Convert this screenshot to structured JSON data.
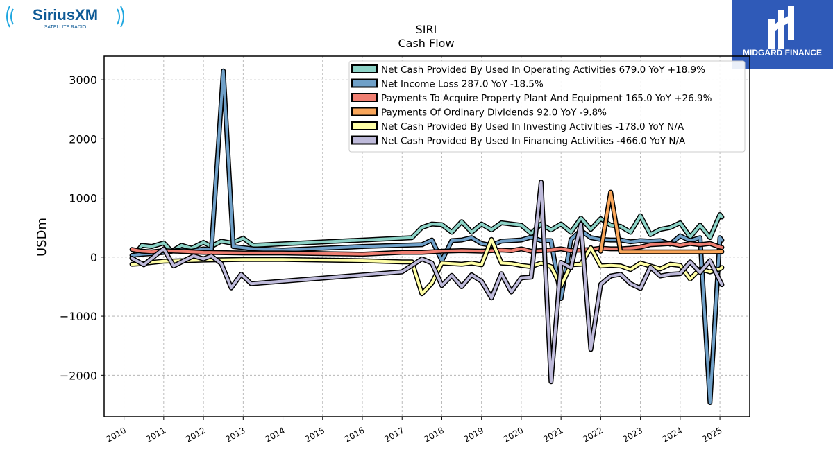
{
  "logos": {
    "left": {
      "name": "SiriusXM",
      "tagline": "SATELLITE RADIO",
      "color": "#0e5a96"
    },
    "right": {
      "name": "MIDGARD FINANCE",
      "bg": "#2f5ab8"
    }
  },
  "chart_data": {
    "type": "line",
    "title": "SIRI",
    "subtitle": "Cash Flow",
    "ylabel": "USDm",
    "xlabel": "",
    "ylim": [
      -2700,
      3400
    ],
    "xlim": [
      2009.5,
      2025.75
    ],
    "yticks": [
      3000,
      2000,
      1000,
      0,
      -1000,
      -2000
    ],
    "ytick_labels": [
      "3000",
      "2000",
      "1000",
      "0",
      "−1000",
      "−2000"
    ],
    "xticks": [
      2010,
      2011,
      2012,
      2013,
      2014,
      2015,
      2016,
      2017,
      2018,
      2019,
      2020,
      2021,
      2022,
      2023,
      2024,
      2025
    ],
    "xtick_labels": [
      "2010",
      "2011",
      "2012",
      "2013",
      "2014",
      "2015",
      "2016",
      "2017",
      "2018",
      "2019",
      "2020",
      "2021",
      "2022",
      "2023",
      "2024",
      "2025"
    ],
    "grid": true,
    "legend_position": "top-right",
    "series": [
      {
        "name": "Net Cash Provided By Used In Operating Activities",
        "summary": "679.0 YoY +18.9%",
        "color": "#8dd3c7",
        "points": [
          [
            2010.2,
            -20
          ],
          [
            2010.45,
            200
          ],
          [
            2010.7,
            180
          ],
          [
            2011.0,
            240
          ],
          [
            2011.2,
            100
          ],
          [
            2011.45,
            200
          ],
          [
            2011.7,
            150
          ],
          [
            2012.0,
            250
          ],
          [
            2012.2,
            180
          ],
          [
            2012.45,
            270
          ],
          [
            2012.7,
            240
          ],
          [
            2013.0,
            320
          ],
          [
            2013.25,
            200
          ],
          [
            2017.25,
            330
          ],
          [
            2017.5,
            500
          ],
          [
            2017.75,
            560
          ],
          [
            2018.0,
            550
          ],
          [
            2018.25,
            420
          ],
          [
            2018.5,
            600
          ],
          [
            2018.75,
            420
          ],
          [
            2019.0,
            560
          ],
          [
            2019.25,
            460
          ],
          [
            2019.5,
            580
          ],
          [
            2019.75,
            560
          ],
          [
            2020.0,
            540
          ],
          [
            2020.25,
            400
          ],
          [
            2020.5,
            560
          ],
          [
            2020.75,
            460
          ],
          [
            2021.0,
            560
          ],
          [
            2021.25,
            420
          ],
          [
            2021.5,
            660
          ],
          [
            2021.75,
            470
          ],
          [
            2022.0,
            650
          ],
          [
            2022.25,
            540
          ],
          [
            2022.5,
            520
          ],
          [
            2022.75,
            420
          ],
          [
            2023.0,
            700
          ],
          [
            2023.25,
            380
          ],
          [
            2023.5,
            470
          ],
          [
            2023.75,
            500
          ],
          [
            2024.0,
            580
          ],
          [
            2024.25,
            340
          ],
          [
            2024.5,
            540
          ],
          [
            2024.75,
            330
          ],
          [
            2025.0,
            720
          ],
          [
            2025.05,
            679
          ]
        ]
      },
      {
        "name": "Net Income Loss",
        "summary": "287.0 YoY -18.5%",
        "color": "#6fa0c8",
        "points": [
          [
            2010.2,
            30
          ],
          [
            2010.45,
            50
          ],
          [
            2010.7,
            60
          ],
          [
            2011.0,
            80
          ],
          [
            2011.2,
            100
          ],
          [
            2011.45,
            120
          ],
          [
            2011.7,
            100
          ],
          [
            2012.0,
            140
          ],
          [
            2012.2,
            120
          ],
          [
            2012.5,
            3150
          ],
          [
            2012.75,
            180
          ],
          [
            2013.0,
            160
          ],
          [
            2013.25,
            140
          ],
          [
            2014.0,
            120
          ],
          [
            2015.0,
            150
          ],
          [
            2016.0,
            180
          ],
          [
            2017.0,
            200
          ],
          [
            2017.5,
            210
          ],
          [
            2017.75,
            290
          ],
          [
            2018.0,
            -60
          ],
          [
            2018.25,
            280
          ],
          [
            2018.5,
            290
          ],
          [
            2018.75,
            330
          ],
          [
            2019.0,
            230
          ],
          [
            2019.25,
            200
          ],
          [
            2019.5,
            270
          ],
          [
            2019.75,
            280
          ],
          [
            2020.0,
            290
          ],
          [
            2020.25,
            340
          ],
          [
            2020.5,
            280
          ],
          [
            2020.75,
            280
          ],
          [
            2021.0,
            -700
          ],
          [
            2021.25,
            300
          ],
          [
            2021.5,
            450
          ],
          [
            2021.75,
            330
          ],
          [
            2022.0,
            300
          ],
          [
            2022.25,
            290
          ],
          [
            2022.5,
            290
          ],
          [
            2022.75,
            260
          ],
          [
            2023.0,
            280
          ],
          [
            2023.25,
            270
          ],
          [
            2023.5,
            280
          ],
          [
            2023.75,
            220
          ],
          [
            2024.0,
            360
          ],
          [
            2024.25,
            280
          ],
          [
            2024.5,
            330
          ],
          [
            2024.75,
            -2460
          ],
          [
            2025.0,
            330
          ],
          [
            2025.05,
            287
          ]
        ]
      },
      {
        "name": "Payments To Acquire Property Plant And Equipment",
        "summary": "165.0 YoY +26.9%",
        "color": "#f07f72",
        "points": [
          [
            2010.2,
            130
          ],
          [
            2010.45,
            100
          ],
          [
            2010.7,
            90
          ],
          [
            2011.0,
            110
          ],
          [
            2012.0,
            80
          ],
          [
            2013.0,
            70
          ],
          [
            2014.0,
            70
          ],
          [
            2015.0,
            60
          ],
          [
            2016.0,
            50
          ],
          [
            2017.0,
            80
          ],
          [
            2017.5,
            80
          ],
          [
            2018.0,
            100
          ],
          [
            2018.5,
            110
          ],
          [
            2019.0,
            100
          ],
          [
            2019.25,
            110
          ],
          [
            2019.5,
            120
          ],
          [
            2019.75,
            110
          ],
          [
            2020.0,
            140
          ],
          [
            2020.25,
            100
          ],
          [
            2020.5,
            110
          ],
          [
            2020.75,
            120
          ],
          [
            2021.0,
            140
          ],
          [
            2021.25,
            110
          ],
          [
            2021.5,
            120
          ],
          [
            2021.75,
            130
          ],
          [
            2022.0,
            150
          ],
          [
            2022.25,
            140
          ],
          [
            2022.5,
            140
          ],
          [
            2022.75,
            150
          ],
          [
            2023.0,
            170
          ],
          [
            2023.25,
            210
          ],
          [
            2023.5,
            220
          ],
          [
            2023.75,
            230
          ],
          [
            2024.0,
            200
          ],
          [
            2024.25,
            230
          ],
          [
            2024.5,
            210
          ],
          [
            2024.75,
            230
          ],
          [
            2025.0,
            170
          ],
          [
            2025.05,
            165
          ]
        ]
      },
      {
        "name": "Payments Of Ordinary Dividends",
        "summary": "92.0 YoY -9.8%",
        "color": "#f9a65a",
        "points": [
          [
            2022.0,
            100
          ],
          [
            2022.25,
            1100
          ],
          [
            2022.5,
            90
          ],
          [
            2023.0,
            90
          ],
          [
            2023.5,
            90
          ],
          [
            2024.0,
            90
          ],
          [
            2024.5,
            90
          ],
          [
            2024.75,
            90
          ],
          [
            2025.05,
            92
          ]
        ]
      },
      {
        "name": "Net Cash Provided By Used In Investing Activities",
        "summary": "-178.0 YoY N/A",
        "color": "#ffffa6",
        "points": [
          [
            2010.2,
            -120
          ],
          [
            2010.45,
            -110
          ],
          [
            2010.7,
            -90
          ],
          [
            2011.0,
            -70
          ],
          [
            2011.5,
            -60
          ],
          [
            2012.0,
            -50
          ],
          [
            2013.0,
            -40
          ],
          [
            2014.0,
            -40
          ],
          [
            2015.0,
            -50
          ],
          [
            2016.0,
            -60
          ],
          [
            2017.0,
            -80
          ],
          [
            2017.25,
            -80
          ],
          [
            2017.5,
            -620
          ],
          [
            2017.75,
            -440
          ],
          [
            2018.0,
            -100
          ],
          [
            2018.25,
            -110
          ],
          [
            2018.5,
            -120
          ],
          [
            2018.75,
            -100
          ],
          [
            2019.0,
            -130
          ],
          [
            2019.25,
            300
          ],
          [
            2019.5,
            -100
          ],
          [
            2019.75,
            -110
          ],
          [
            2020.0,
            -140
          ],
          [
            2020.25,
            -160
          ],
          [
            2020.5,
            -100
          ],
          [
            2020.75,
            -160
          ],
          [
            2021.0,
            -490
          ],
          [
            2021.25,
            -130
          ],
          [
            2021.5,
            -120
          ],
          [
            2021.75,
            160
          ],
          [
            2022.0,
            -150
          ],
          [
            2022.25,
            -140
          ],
          [
            2022.5,
            -150
          ],
          [
            2022.75,
            -210
          ],
          [
            2023.0,
            -100
          ],
          [
            2023.25,
            -150
          ],
          [
            2023.5,
            -200
          ],
          [
            2023.75,
            -120
          ],
          [
            2024.0,
            -140
          ],
          [
            2024.25,
            -370
          ],
          [
            2024.5,
            -200
          ],
          [
            2024.75,
            -250
          ],
          [
            2025.0,
            -200
          ],
          [
            2025.05,
            -178
          ]
        ]
      },
      {
        "name": "Net Cash Provided By Used In Financing Activities",
        "summary": "-466.0 YoY N/A",
        "color": "#bebada",
        "points": [
          [
            2010.2,
            -20
          ],
          [
            2010.5,
            -130
          ],
          [
            2011.0,
            140
          ],
          [
            2011.25,
            -150
          ],
          [
            2011.75,
            20
          ],
          [
            2012.0,
            -30
          ],
          [
            2012.2,
            20
          ],
          [
            2012.45,
            -110
          ],
          [
            2012.7,
            -520
          ],
          [
            2012.95,
            -290
          ],
          [
            2013.2,
            -450
          ],
          [
            2017.0,
            -250
          ],
          [
            2017.5,
            -30
          ],
          [
            2017.75,
            -100
          ],
          [
            2018.0,
            -480
          ],
          [
            2018.25,
            -310
          ],
          [
            2018.5,
            -500
          ],
          [
            2018.75,
            -300
          ],
          [
            2019.0,
            -410
          ],
          [
            2019.25,
            -690
          ],
          [
            2019.5,
            -280
          ],
          [
            2019.75,
            -590
          ],
          [
            2020.0,
            -350
          ],
          [
            2020.25,
            -340
          ],
          [
            2020.5,
            1270
          ],
          [
            2020.75,
            -2110
          ],
          [
            2021.0,
            -90
          ],
          [
            2021.25,
            -180
          ],
          [
            2021.5,
            560
          ],
          [
            2021.75,
            -1560
          ],
          [
            2022.0,
            -460
          ],
          [
            2022.25,
            -320
          ],
          [
            2022.5,
            -290
          ],
          [
            2022.75,
            -450
          ],
          [
            2023.0,
            -530
          ],
          [
            2023.25,
            -170
          ],
          [
            2023.5,
            -320
          ],
          [
            2023.75,
            -290
          ],
          [
            2024.0,
            -280
          ],
          [
            2024.25,
            -80
          ],
          [
            2024.5,
            -260
          ],
          [
            2024.75,
            -60
          ],
          [
            2025.0,
            -400
          ],
          [
            2025.05,
            -466
          ]
        ]
      }
    ]
  }
}
